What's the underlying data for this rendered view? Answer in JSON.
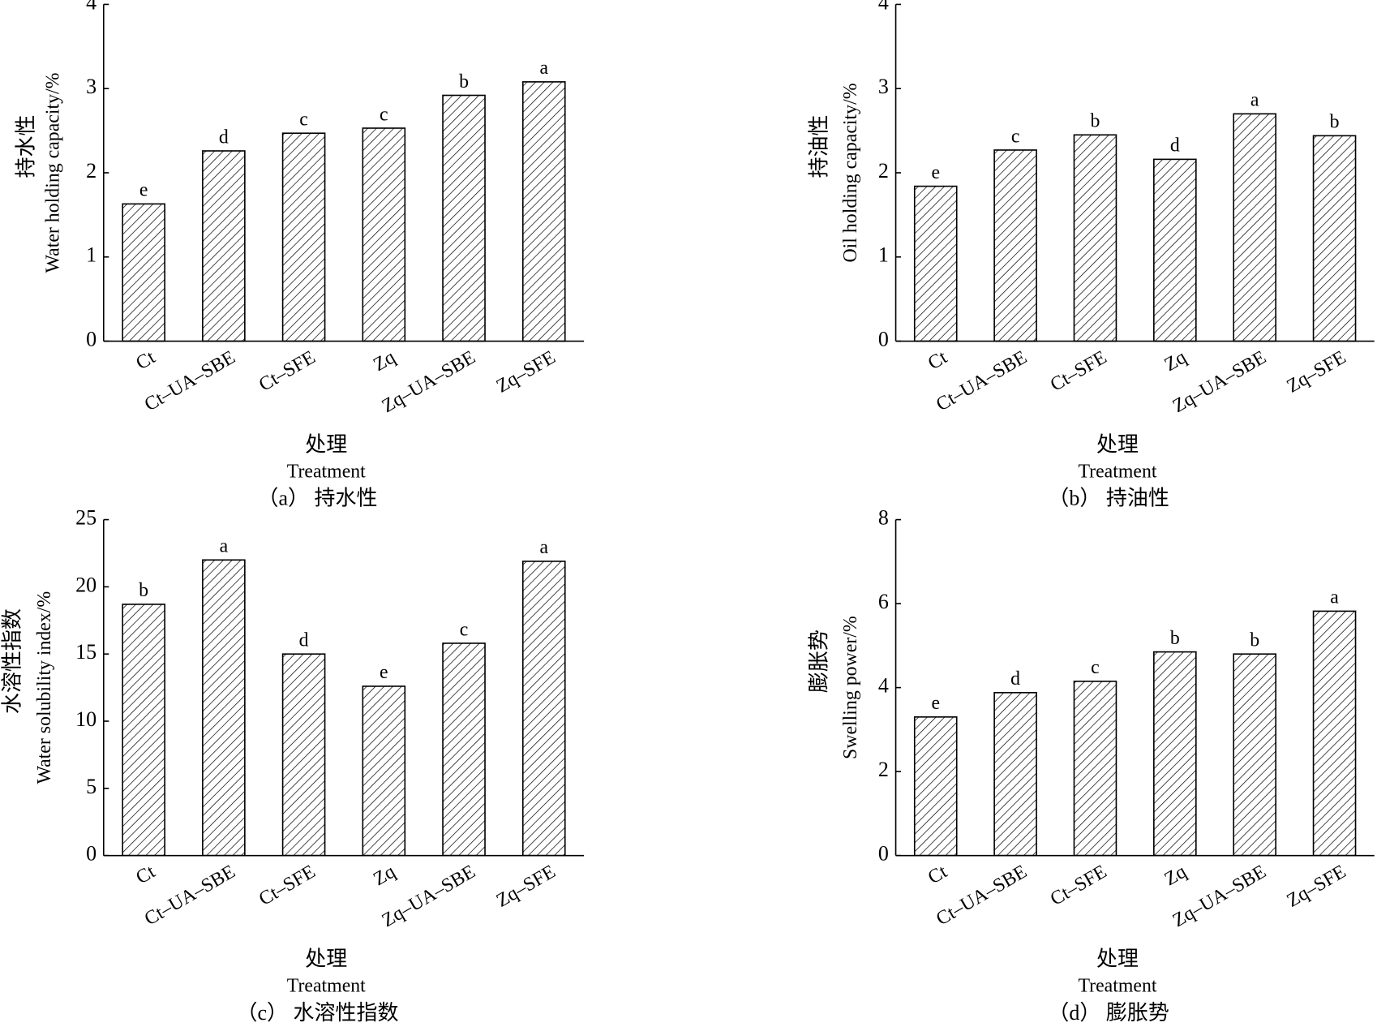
{
  "chart_data": [
    {
      "type": "bar",
      "caption": "（a） 持水性",
      "y_label_cn": "持水性",
      "y_label": "Water holding capacity/%",
      "x_label_cn": "处理",
      "x_label": "Treatment",
      "categories": [
        "Ct",
        "Ct–UA–SBE",
        "Ct–SFE",
        "Zq",
        "Zq–UA–SBE",
        "Zq–SFE"
      ],
      "values": [
        1.63,
        2.26,
        2.47,
        2.53,
        2.92,
        3.08
      ],
      "significance_letters": [
        "e",
        "d",
        "c",
        "c",
        "b",
        "a"
      ],
      "ylim": [
        0,
        4
      ],
      "yticks": [
        0,
        1,
        2,
        3,
        4
      ],
      "color": "#000000"
    },
    {
      "type": "bar",
      "caption": "（b） 持油性",
      "y_label_cn": "持油性",
      "y_label": "Oil holding capacity/%",
      "x_label_cn": "处理",
      "x_label": "Treatment",
      "categories": [
        "Ct",
        "Ct–UA–SBE",
        "Ct–SFE",
        "Zq",
        "Zq–UA–SBE",
        "Zq–SFE"
      ],
      "values": [
        1.84,
        2.27,
        2.45,
        2.16,
        2.7,
        2.44
      ],
      "significance_letters": [
        "e",
        "c",
        "b",
        "d",
        "a",
        "b"
      ],
      "ylim": [
        0,
        4
      ],
      "yticks": [
        0,
        1,
        2,
        3,
        4
      ],
      "color": "#000000"
    },
    {
      "type": "bar",
      "caption": "（c） 水溶性指数",
      "y_label_cn": "水溶性指数",
      "y_label": "Water solubility index/%",
      "x_label_cn": "处理",
      "x_label": "Treatment",
      "categories": [
        "Ct",
        "Ct–UA–SBE",
        "Ct–SFE",
        "Zq",
        "Zq–UA–SBE",
        "Zq–SFE"
      ],
      "values": [
        18.7,
        22.0,
        15.0,
        12.6,
        15.8,
        21.9
      ],
      "significance_letters": [
        "b",
        "a",
        "d",
        "e",
        "c",
        "a"
      ],
      "ylim": [
        0,
        25
      ],
      "yticks": [
        0,
        5,
        10,
        15,
        20,
        25
      ],
      "color": "#000000"
    },
    {
      "type": "bar",
      "caption": "（d） 膨胀势",
      "y_label_cn": "膨胀势",
      "y_label": "Swelling power/%",
      "x_label_cn": "处理",
      "x_label": "Treatment",
      "categories": [
        "Ct",
        "Ct–UA–SBE",
        "Ct–SFE",
        "Zq",
        "Zq–UA–SBE",
        "Zq–SFE"
      ],
      "values": [
        3.3,
        3.88,
        4.15,
        4.85,
        4.8,
        5.82
      ],
      "significance_letters": [
        "e",
        "d",
        "c",
        "b",
        "b",
        "a"
      ],
      "ylim": [
        0,
        8
      ],
      "yticks": [
        0,
        2,
        4,
        6,
        8
      ],
      "color": "#000000"
    }
  ]
}
